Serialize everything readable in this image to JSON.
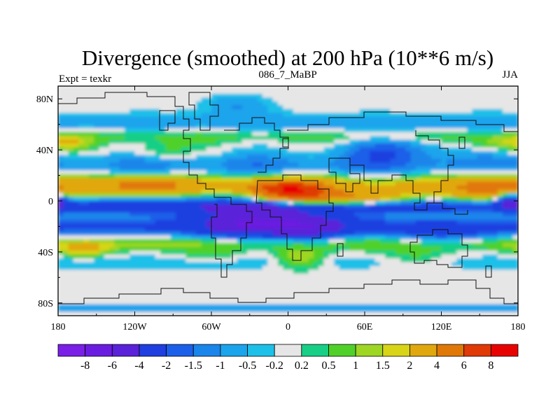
{
  "chart_data": {
    "type": "heatmap",
    "title": "Divergence (smoothed) at 200 hPa (10**6 m/s)",
    "subtitle_left": "Expt = texkr",
    "subtitle_center": "086_7_MaBP",
    "subtitle_right": "JJA",
    "x_ticks": [
      {
        "value": -180,
        "label": "180"
      },
      {
        "value": -120,
        "label": "120W"
      },
      {
        "value": -60,
        "label": "60W"
      },
      {
        "value": 0,
        "label": "0"
      },
      {
        "value": 60,
        "label": "60E"
      },
      {
        "value": 120,
        "label": "120E"
      },
      {
        "value": 180,
        "label": "180"
      }
    ],
    "y_ticks": [
      {
        "value": 80,
        "label": "80N"
      },
      {
        "value": 40,
        "label": "40N"
      },
      {
        "value": 0,
        "label": "0"
      },
      {
        "value": -40,
        "label": "40S"
      },
      {
        "value": -80,
        "label": "80S"
      }
    ],
    "xlim": [
      -180,
      180
    ],
    "ylim": [
      -90,
      90
    ],
    "colorbar": {
      "levels": [
        "-8",
        "-6",
        "-4",
        "-2",
        "-1.5",
        "-1",
        "-0.5",
        "-0.2",
        "0.2",
        "0.5",
        "1",
        "1.5",
        "2",
        "4",
        "6",
        "8"
      ],
      "colors": [
        "#7a1fe6",
        "#6a1de0",
        "#5a22d9",
        "#1f3fe0",
        "#1c5fe8",
        "#1a85ea",
        "#1aa4ec",
        "#1dc0e8",
        "#e6e6e6",
        "#18cf86",
        "#4fd12a",
        "#9ed624",
        "#d8d418",
        "#e0a80e",
        "#e07808",
        "#e03a06",
        "#e80303"
      ]
    },
    "bands": [
      {
        "lat": 62,
        "half_width": 7,
        "value": -0.8
      },
      {
        "lat": 50,
        "half_width": 5,
        "value": 0.6
      },
      {
        "lat": 28,
        "half_width": 9,
        "value": -1.2
      },
      {
        "lat": 12,
        "half_width": 7,
        "value": 2.2
      },
      {
        "lat": -4,
        "half_width": 6,
        "value": -3.0
      },
      {
        "lat": -20,
        "half_width": 8,
        "value": -2.2
      },
      {
        "lat": -33,
        "half_width": 6,
        "value": 1.2
      },
      {
        "lat": -48,
        "half_width": 6,
        "value": -0.5
      },
      {
        "lat": -84,
        "half_width": 4,
        "value": -0.7
      }
    ],
    "blobs": [
      {
        "lon": 0,
        "lat": 8,
        "rx": 30,
        "ry": 9,
        "value": 6.5
      },
      {
        "lon": 45,
        "lat": 2,
        "rx": 50,
        "ry": 6,
        "value": 4.2
      },
      {
        "lon": 160,
        "lat": 8,
        "rx": 35,
        "ry": 12,
        "value": 3.5
      },
      {
        "lon": -110,
        "lat": 12,
        "rx": 35,
        "ry": 8,
        "value": 3.0
      },
      {
        "lon": -30,
        "lat": -15,
        "rx": 40,
        "ry": 14,
        "value": -4.5
      },
      {
        "lon": 20,
        "lat": -20,
        "rx": 30,
        "ry": 12,
        "value": -3.0
      },
      {
        "lon": 175,
        "lat": 0,
        "rx": 12,
        "ry": 7,
        "value": -5.0
      },
      {
        "lon": 10,
        "lat": -45,
        "rx": 20,
        "ry": 8,
        "value": 1.8
      },
      {
        "lon": -60,
        "lat": -42,
        "rx": 25,
        "ry": 7,
        "value": 0.8
      },
      {
        "lon": -160,
        "lat": -38,
        "rx": 20,
        "ry": 6,
        "value": 2.2
      },
      {
        "lon": -100,
        "lat": 38,
        "rx": 25,
        "ry": 8,
        "value": 0.9
      },
      {
        "lon": 80,
        "lat": 40,
        "rx": 40,
        "ry": 10,
        "value": -1.6
      },
      {
        "lon": 170,
        "lat": 45,
        "rx": 25,
        "ry": 6,
        "value": 1.2
      },
      {
        "lon": -170,
        "lat": 45,
        "rx": 15,
        "ry": 6,
        "value": 1.2
      },
      {
        "lon": 100,
        "lat": -45,
        "rx": 30,
        "ry": 8,
        "value": 0.8
      },
      {
        "lon": -40,
        "lat": 75,
        "rx": 25,
        "ry": 8,
        "value": -1.0
      },
      {
        "lon": 120,
        "lat": -28,
        "rx": 40,
        "ry": 8,
        "value": -1.5
      }
    ]
  }
}
